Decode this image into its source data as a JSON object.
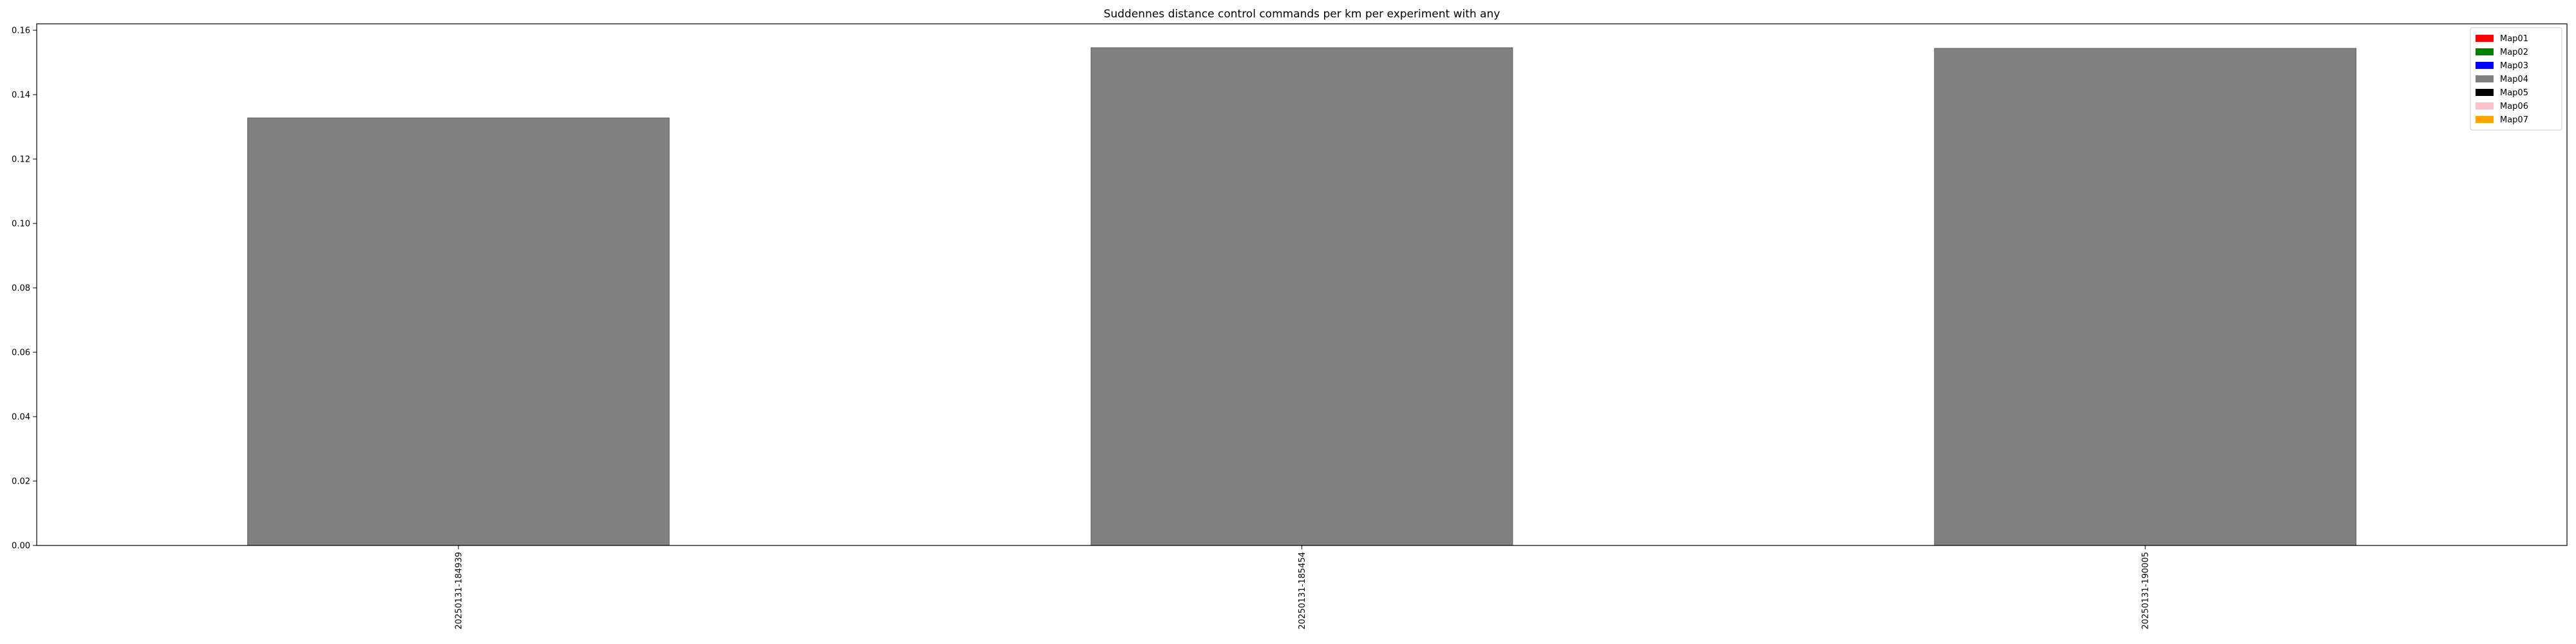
{
  "chart_data": {
    "type": "bar",
    "title": "Suddennes distance control commands per km per experiment with any",
    "xlabel": "",
    "ylabel": "",
    "categories": [
      "20250131-184939",
      "20250131-185454",
      "20250131-190005"
    ],
    "series": [
      {
        "name": "Map04",
        "color": "#808080",
        "values": [
          0.1328,
          0.1546,
          0.1544
        ]
      }
    ],
    "ylim": [
      0,
      0.162
    ],
    "yticks": [
      0.0,
      0.02,
      0.04,
      0.06,
      0.08,
      0.1,
      0.12,
      0.14,
      0.16
    ],
    "ytick_labels": [
      "0.00",
      "0.02",
      "0.04",
      "0.06",
      "0.08",
      "0.10",
      "0.12",
      "0.14",
      "0.16"
    ],
    "grid": false,
    "legend": {
      "placement": "top-right",
      "entries": [
        {
          "label": "Map01",
          "color": "#ff0000"
        },
        {
          "label": "Map02",
          "color": "#008000"
        },
        {
          "label": "Map03",
          "color": "#0000ff"
        },
        {
          "label": "Map04",
          "color": "#808080"
        },
        {
          "label": "Map05",
          "color": "#000000"
        },
        {
          "label": "Map06",
          "color": "#ffc0cb"
        },
        {
          "label": "Map07",
          "color": "#ffa500"
        }
      ]
    }
  }
}
